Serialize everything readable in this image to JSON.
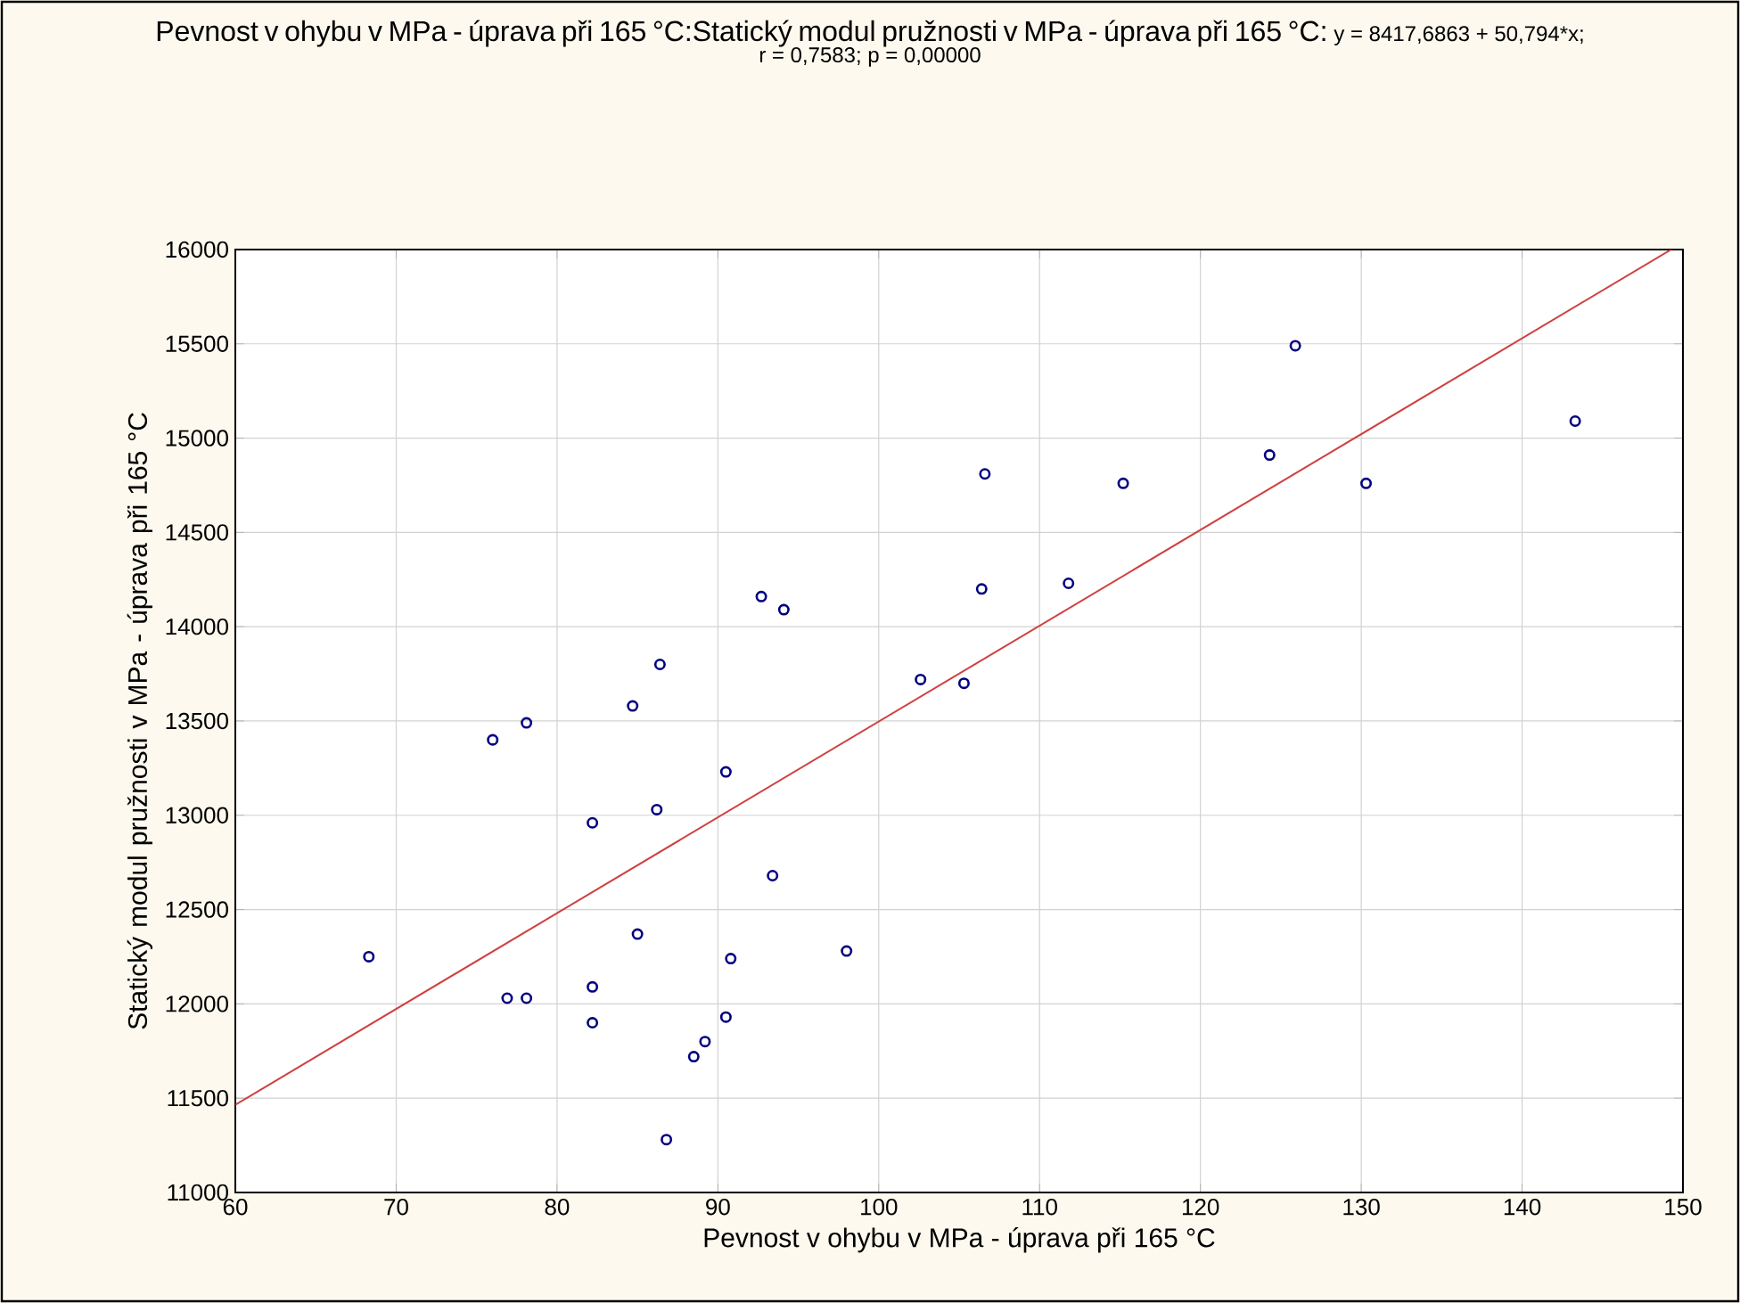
{
  "chart_data": {
    "type": "scatter",
    "title": "Pevnost v ohybu v MPa - úprava při 165 °C:Statický modul pružnosti v MPa - úprava při 165 °C:",
    "annotations": [
      "y = 8417,6863 + 50,794*x;",
      "r = 0,7583; p = 0,00000"
    ],
    "xlabel": "Pevnost v ohybu v MPa - úprava při 165 °C",
    "ylabel": "Statický modul pružnosti v MPa - úprava při 165 °C",
    "xlim": [
      60,
      150
    ],
    "xticks": [
      60,
      70,
      80,
      90,
      100,
      110,
      120,
      130,
      140,
      150
    ],
    "ylim": [
      11000,
      16000
    ],
    "yticks": [
      11000,
      11500,
      12000,
      12500,
      13000,
      13500,
      14000,
      14500,
      15000,
      15500,
      16000
    ],
    "grid": true,
    "marker": "circle",
    "series": [
      {
        "type": "scatter",
        "color": "#000080",
        "x": [
          68.3,
          76.0,
          78.1,
          76.9,
          78.1,
          82.2,
          82.2,
          82.2,
          84.7,
          85.0,
          86.4,
          86.2,
          86.8,
          88.5,
          89.2,
          90.5,
          90.5,
          90.8,
          92.7,
          94.1,
          93.4,
          98.0,
          102.6,
          105.3,
          106.4,
          106.6,
          111.8,
          115.2,
          124.3,
          125.9,
          130.3,
          143.3
        ],
        "values": [
          12250,
          13400,
          13490,
          12030,
          12030,
          12960,
          12090,
          11900,
          13580,
          12370,
          13800,
          13030,
          11280,
          11720,
          11800,
          13230,
          11930,
          12240,
          14160,
          14090,
          12680,
          12280,
          13720,
          13700,
          14200,
          14810,
          14230,
          14760,
          14910,
          15490,
          14760,
          15090
        ]
      },
      {
        "type": "line",
        "color": "#d04040",
        "marker": "none",
        "line_style": "solid",
        "x": [
          60,
          149.27
        ],
        "values": [
          11465,
          16000
        ]
      }
    ]
  }
}
